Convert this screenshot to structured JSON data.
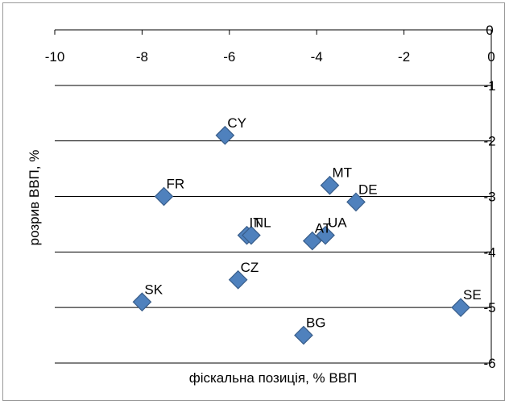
{
  "chart_data": {
    "type": "scatter",
    "title": "",
    "xlabel": "фіскальна позиція, % ВВП",
    "ylabel": "розрив ВВП, %",
    "xlim": [
      -10,
      0
    ],
    "ylim": [
      -6,
      0
    ],
    "x_ticks": [
      "-10",
      "-8",
      "-6",
      "-4",
      "-2",
      "0"
    ],
    "y_ticks": [
      "0",
      "-1",
      "-2",
      "-3",
      "-4",
      "-5",
      "-6"
    ],
    "grid": "horizontal",
    "x_axis_position": "top",
    "y_axis_position": "right",
    "marker": "diamond",
    "marker_color": "#4f81bd",
    "marker_edge_color": "#385d8a",
    "points": [
      {
        "label": "CY",
        "x": -6.1,
        "y": -1.9
      },
      {
        "label": "FR",
        "x": -7.5,
        "y": -3.0
      },
      {
        "label": "MT",
        "x": -3.7,
        "y": -2.8
      },
      {
        "label": "DE",
        "x": -3.1,
        "y": -3.1
      },
      {
        "label": "IT",
        "x": -5.6,
        "y": -3.7
      },
      {
        "label": "NL",
        "x": -5.5,
        "y": -3.7
      },
      {
        "label": "AT",
        "x": -4.1,
        "y": -3.8
      },
      {
        "label": "UA",
        "x": -3.8,
        "y": -3.7
      },
      {
        "label": "CZ",
        "x": -5.8,
        "y": -4.5
      },
      {
        "label": "SK",
        "x": -8.0,
        "y": -4.9
      },
      {
        "label": "SE",
        "x": -0.7,
        "y": -5.0
      },
      {
        "label": "BG",
        "x": -4.3,
        "y": -5.5
      }
    ]
  }
}
